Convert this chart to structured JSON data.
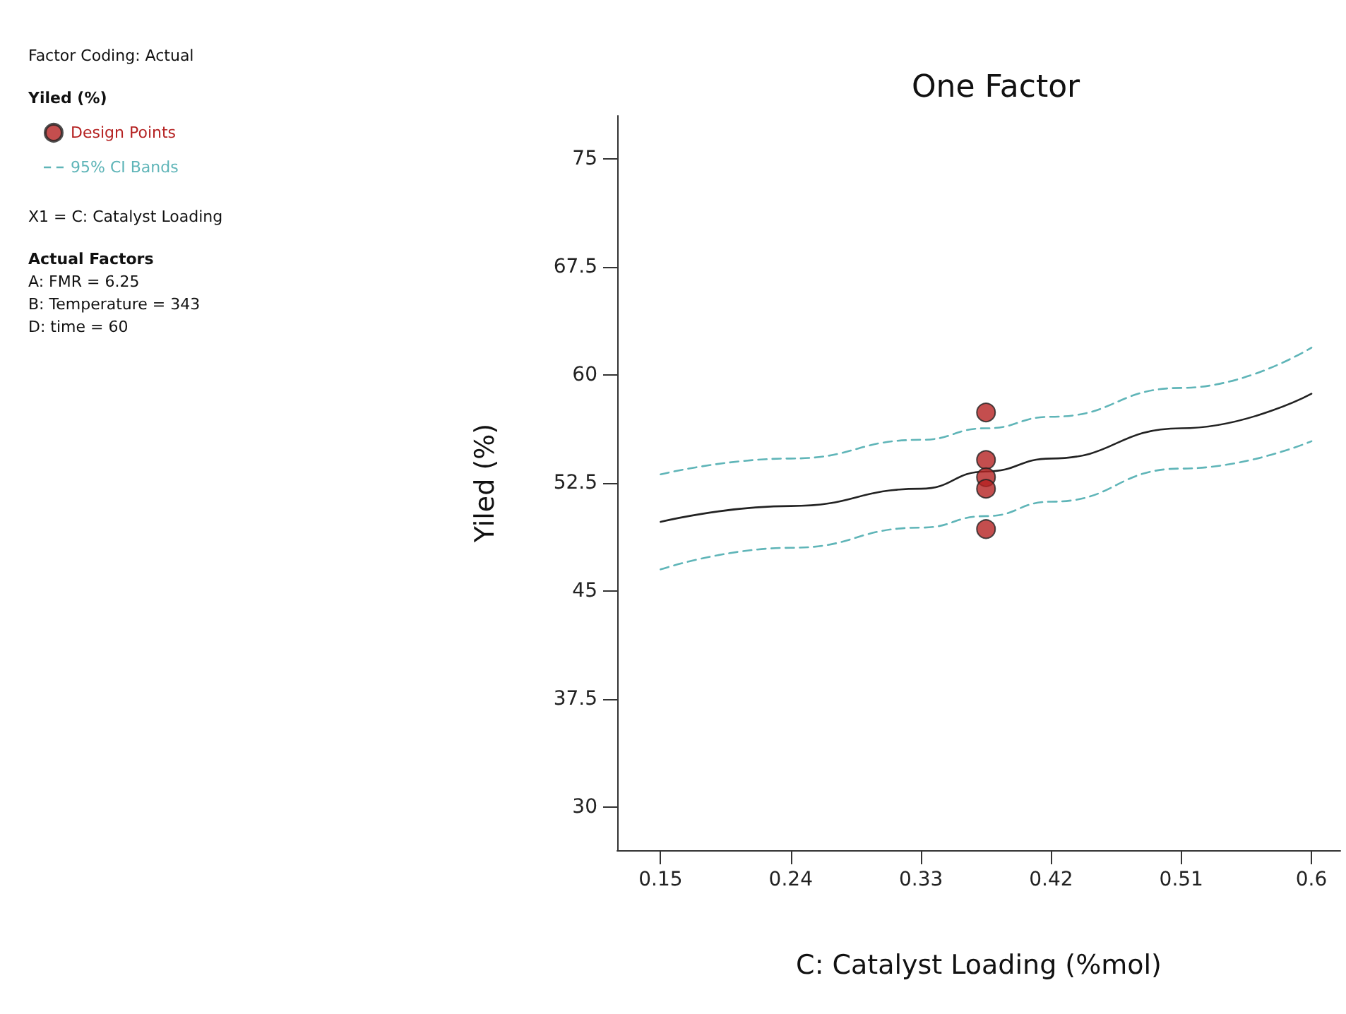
{
  "chart_data": {
    "type": "scatter",
    "title": "One Factor",
    "xlabel": "C: Catalyst Loading (%mol)",
    "ylabel": "Yiled (%)",
    "legend_title": "Yiled (%)",
    "annotations": [
      "Factor Coding: Actual",
      "X1 = C: Catalyst Loading",
      "Actual Factors",
      "A: FMR = 6.25",
      "B: Temperature = 343",
      "D: time = 60"
    ],
    "series": [
      {
        "name": "Design Points",
        "marker": "circle",
        "color": "#b52222",
        "x": [
          0.375,
          0.375,
          0.375,
          0.375,
          0.375
        ],
        "values": [
          57.4,
          54.1,
          52.9,
          52.1,
          49.3
        ]
      },
      {
        "type": "line",
        "marker": "none",
        "color": "#222222",
        "line_style": "solid",
        "x": [
          0.15,
          0.24,
          0.33,
          0.375,
          0.42,
          0.51,
          0.6
        ],
        "values": [
          49.8,
          50.9,
          52.1,
          53.3,
          54.2,
          56.3,
          58.7
        ]
      },
      {
        "name": "95% CI Bands",
        "type": "line",
        "marker": "none",
        "color": "#5fb5b8",
        "line_style": "dashed",
        "x": [
          0.15,
          0.24,
          0.33,
          0.375,
          0.42,
          0.51,
          0.6
        ],
        "values": [
          53.1,
          54.2,
          55.5,
          56.3,
          57.1,
          59.1,
          61.9
        ]
      },
      {
        "type": "line",
        "marker": "none",
        "color": "#5fb5b8",
        "line_style": "dashed",
        "x": [
          0.15,
          0.24,
          0.33,
          0.375,
          0.42,
          0.51,
          0.6
        ],
        "values": [
          46.5,
          48.0,
          49.4,
          50.2,
          51.2,
          53.5,
          55.4
        ]
      }
    ],
    "xlim": [
      0.12,
      0.62
    ],
    "xticks": [
      0.15,
      0.24,
      0.33,
      0.42,
      0.51,
      0.6
    ],
    "ylim": [
      27,
      78
    ],
    "yticks": [
      30,
      37.5,
      45,
      52.5,
      60,
      67.5,
      75
    ],
    "grid": false,
    "legend": "left"
  }
}
